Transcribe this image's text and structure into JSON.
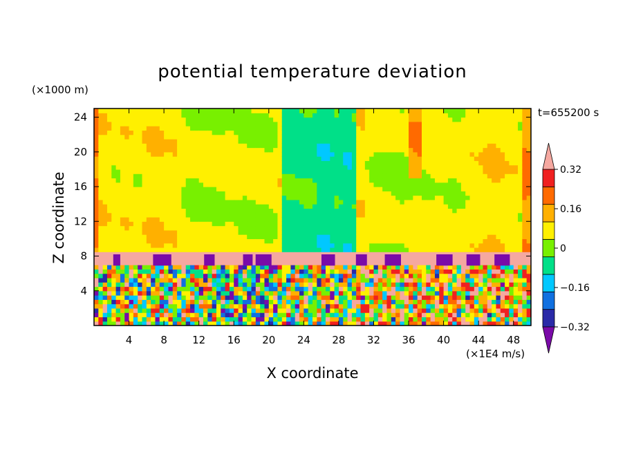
{
  "chart_data": {
    "type": "heatmap",
    "title": "potential temperature deviation",
    "xlabel": "X coordinate",
    "ylabel": "Z coordinate",
    "x_unit": "(×1E4 m/s)",
    "y_unit": "(×1000 m)",
    "time_label": "t=655200 s",
    "xlim": [
      0,
      50
    ],
    "ylim": [
      0,
      25
    ],
    "x_ticks": [
      4,
      8,
      12,
      16,
      20,
      24,
      28,
      32,
      36,
      40,
      44,
      48
    ],
    "y_ticks": [
      4,
      8,
      12,
      16,
      20,
      24
    ],
    "colorbar": {
      "levels": [
        -0.4,
        -0.32,
        -0.24,
        -0.16,
        -0.08,
        0,
        0.08,
        0.16,
        0.24,
        0.32,
        0.4
      ],
      "colors": [
        "#7a0aa8",
        "#2a2aa8",
        "#1070e0",
        "#00c8ff",
        "#00e088",
        "#78f000",
        "#fff000",
        "#ffb000",
        "#ff6a00",
        "#f02020",
        "#f5a8a0"
      ],
      "labels": [
        "0.32",
        "0.16",
        "0",
        "-0.16",
        "-0.32"
      ],
      "label_values": [
        0.32,
        0.16,
        0,
        -0.16,
        -0.32
      ],
      "extend": "both"
    },
    "field_summary": [
      {
        "region": "z 0–7 (boundary layer)",
        "value": "turbulent mix from -0.4 to 0.4"
      },
      {
        "region": "z 7–8.6 (inversion)",
        "value": 0.4
      },
      {
        "region": "z 8.6–25, x 0–21 and 30–50",
        "value": 0.04
      },
      {
        "region": "z 8.6–25, x 21–30",
        "value": -0.12
      }
    ]
  }
}
